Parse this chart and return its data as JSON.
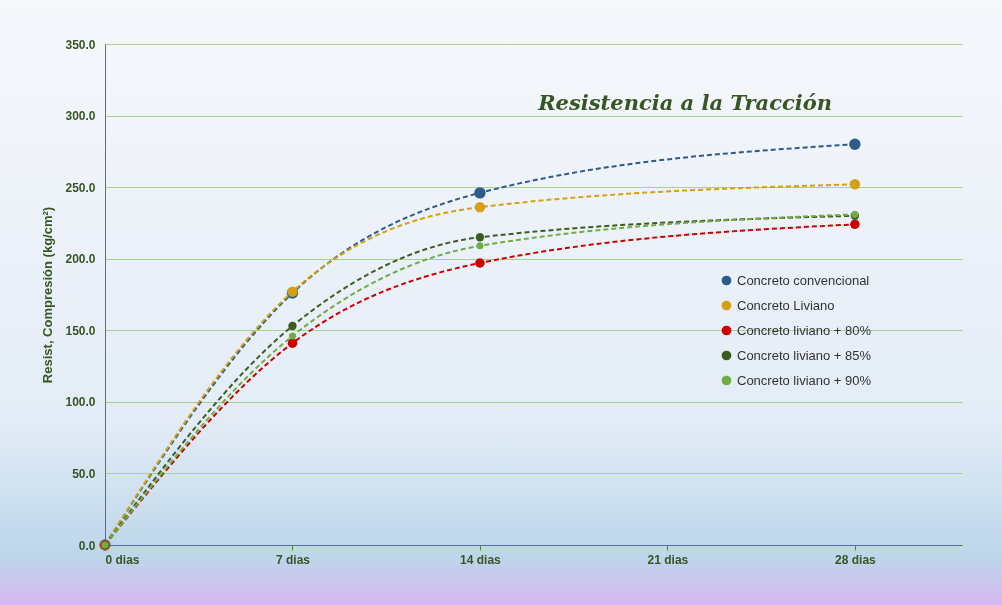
{
  "chart_data": {
    "type": "line",
    "title": "Resistencia a la Tracción",
    "ylabel": "Resist, Compresión (kg/cm²)",
    "x": [
      0,
      7,
      14,
      28
    ],
    "xlim": [
      0,
      32
    ],
    "xticks": [
      {
        "value": 0,
        "label": "0 dias"
      },
      {
        "value": 7,
        "label": "7 dias"
      },
      {
        "value": 14,
        "label": "14 dias"
      },
      {
        "value": 21,
        "label": "21 dias"
      },
      {
        "value": 28,
        "label": "28 dias"
      }
    ],
    "ylim": [
      0,
      350
    ],
    "yticks": [
      {
        "value": 0,
        "label": "0.0"
      },
      {
        "value": 50,
        "label": "50.0"
      },
      {
        "value": 100,
        "label": "100.0"
      },
      {
        "value": 150,
        "label": "150.0"
      },
      {
        "value": 200,
        "label": "200.0"
      },
      {
        "value": 250,
        "label": "250.0"
      },
      {
        "value": 300,
        "label": "300.0"
      },
      {
        "value": 350,
        "label": "350.0"
      }
    ],
    "series": [
      {
        "name": "Concreto convencional",
        "color": "#2e5c8a",
        "values": [
          0,
          176,
          246,
          280
        ]
      },
      {
        "name": "Concreto Liviano",
        "color": "#d4a017",
        "values": [
          0,
          177,
          236,
          252
        ]
      },
      {
        "name": "Concreto liviano + 80%",
        "color": "#cc0000",
        "values": [
          0,
          141,
          197,
          224
        ]
      },
      {
        "name": "Concreto liviano + 85%",
        "color": "#3d5c23",
        "values": [
          0,
          153,
          215,
          230
        ]
      },
      {
        "name": "Concreto liviano + 90%",
        "color": "#70ad47",
        "values": [
          0,
          146,
          209,
          231
        ]
      }
    ],
    "grid": "y",
    "legend": "right",
    "marker": "circle",
    "line_style": "dashed"
  }
}
